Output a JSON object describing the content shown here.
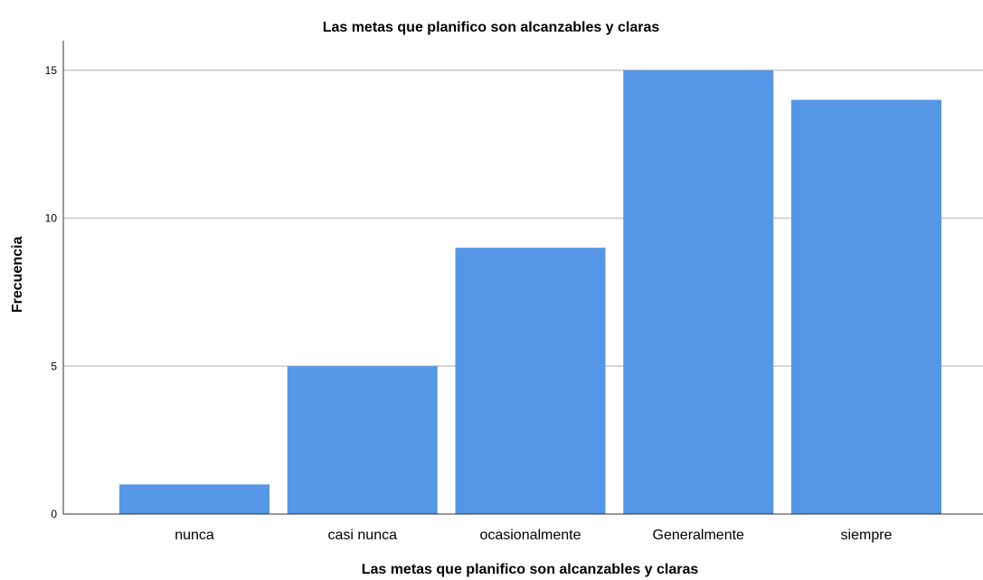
{
  "chart_data": {
    "type": "bar",
    "title": "Las metas que planifico son alcanzables y claras",
    "xlabel": "Las metas que planifico son alcanzables y claras",
    "ylabel": "Frecuencia",
    "categories": [
      "nunca",
      "casi nunca",
      "ocasionalmente",
      "Generalmente",
      "siempre"
    ],
    "values": [
      1,
      5,
      9,
      15,
      14
    ],
    "ylim": [
      0,
      16
    ],
    "yticks": [
      0,
      5,
      10,
      15
    ],
    "grid": true,
    "bar_color": "#5596e6",
    "grid_color": "#c8c8c8",
    "axis_color": "#333333"
  }
}
